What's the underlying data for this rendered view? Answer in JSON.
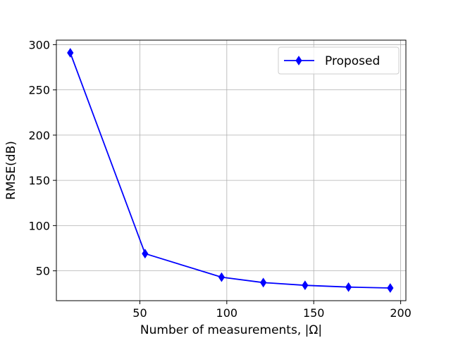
{
  "chart_data": {
    "type": "line",
    "title": "",
    "xlabel": "Number of measurements, |Ω|",
    "ylabel": "RMSE(dB)",
    "xlim": [
      2,
      203
    ],
    "ylim": [
      17,
      305
    ],
    "xticks": [
      50,
      100,
      150,
      200
    ],
    "yticks": [
      50,
      100,
      150,
      200,
      250,
      300
    ],
    "grid": true,
    "legend_position": "top-right",
    "series": [
      {
        "name": "Proposed",
        "color": "#0000ff",
        "marker": "diamond",
        "x": [
          10,
          53,
          97,
          121,
          145,
          170,
          194
        ],
        "y": [
          291,
          69,
          43,
          37,
          34,
          32,
          31
        ]
      }
    ]
  }
}
